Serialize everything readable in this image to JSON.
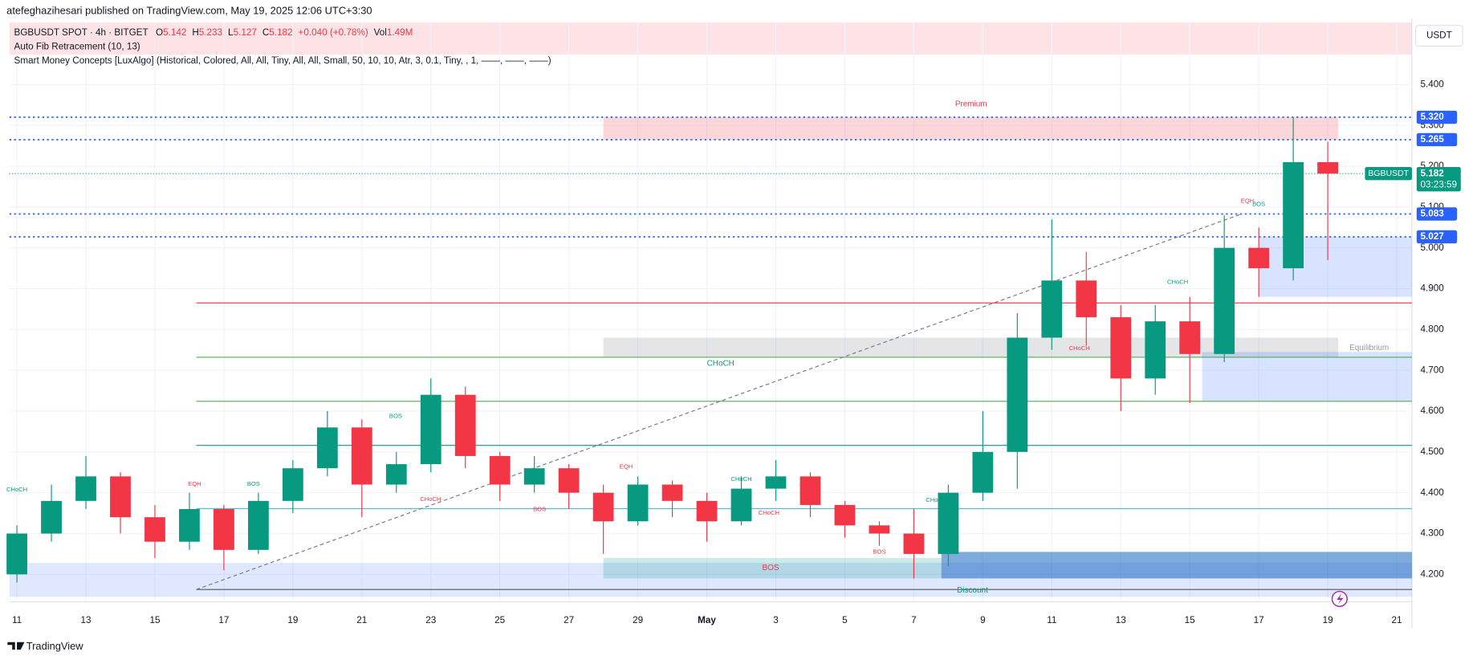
{
  "header": {
    "publisher": "atefeghazihesari published on TradingView.com, May 19, 2025 12:06 UTC+3:30"
  },
  "legend": {
    "symbol": "BGBUSDT SPOT · 4h · BITGET",
    "o_label": "O",
    "open": 5.142,
    "h_label": "H",
    "high": 5.233,
    "l_label": "L",
    "low": 5.127,
    "c_label": "C",
    "close": 5.182,
    "change": "+0.040 (+0.78%)",
    "vol_label": "Vol",
    "volume": "1.49M",
    "indicator_1": "Auto Fib Retracement (10, 13)",
    "indicator_2": "Smart Money Concepts [LuxAlgo] (Historical, Colored, All, All, Tiny, All, All, Small, 50, 10, 10, Atr, 3, 0.1, Tiny, , 1, ——, ——, ——)"
  },
  "currency": "USDT",
  "footer": "TradingView",
  "chart_data": {
    "type": "candlestick",
    "up_color": "#089981",
    "down_color": "#f23645",
    "x": [
      0,
      1,
      2,
      3,
      4,
      5,
      6,
      7,
      8,
      9,
      10,
      11,
      12,
      13,
      14,
      15,
      16,
      17,
      18,
      19,
      20,
      21,
      22,
      23,
      24,
      25,
      26,
      27,
      28,
      29,
      30,
      31,
      32,
      33,
      34,
      35,
      36,
      37,
      38
    ],
    "open": [
      4.2,
      4.3,
      4.38,
      4.44,
      4.34,
      4.28,
      4.36,
      4.26,
      4.38,
      4.46,
      4.56,
      4.42,
      4.47,
      4.64,
      4.49,
      4.42,
      4.46,
      4.4,
      4.33,
      4.42,
      4.38,
      4.33,
      4.41,
      4.44,
      4.37,
      4.32,
      4.3,
      4.25,
      4.4,
      4.5,
      4.78,
      4.92,
      4.83,
      4.68,
      4.82,
      4.74,
      5.0,
      4.95,
      5.21
    ],
    "high": [
      4.32,
      4.42,
      4.49,
      4.45,
      4.37,
      4.4,
      4.37,
      4.4,
      4.48,
      4.6,
      4.58,
      4.5,
      4.68,
      4.66,
      4.5,
      4.49,
      4.47,
      4.42,
      4.44,
      4.43,
      4.4,
      4.44,
      4.48,
      4.45,
      4.38,
      4.33,
      4.36,
      4.42,
      4.6,
      4.84,
      5.07,
      4.99,
      4.86,
      4.86,
      4.88,
      5.08,
      5.05,
      5.32,
      5.26
    ],
    "low": [
      4.18,
      4.28,
      4.36,
      4.3,
      4.24,
      4.26,
      4.21,
      4.25,
      4.35,
      4.44,
      4.34,
      4.4,
      4.45,
      4.46,
      4.38,
      4.4,
      4.36,
      4.25,
      4.32,
      4.34,
      4.28,
      4.32,
      4.38,
      4.34,
      4.29,
      4.27,
      4.19,
      4.22,
      4.38,
      4.41,
      4.75,
      4.76,
      4.6,
      4.64,
      4.62,
      4.72,
      4.88,
      4.92,
      4.97
    ],
    "close": [
      4.3,
      4.38,
      4.44,
      4.34,
      4.28,
      4.36,
      4.26,
      4.38,
      4.46,
      4.56,
      4.42,
      4.47,
      4.64,
      4.49,
      4.42,
      4.46,
      4.4,
      4.33,
      4.42,
      4.38,
      4.33,
      4.41,
      4.44,
      4.37,
      4.32,
      4.3,
      4.25,
      4.4,
      4.5,
      4.78,
      4.92,
      4.83,
      4.68,
      4.82,
      4.74,
      5.0,
      4.95,
      5.21,
      5.182
    ],
    "xlim": [
      -0.218,
      40.44
    ],
    "ylim": [
      4.133,
      5.552
    ],
    "xticks": [
      {
        "value": 0,
        "label": "11"
      },
      {
        "value": 2,
        "label": "13"
      },
      {
        "value": 4,
        "label": "15"
      },
      {
        "value": 6,
        "label": "17"
      },
      {
        "value": 8,
        "label": "19"
      },
      {
        "value": 10,
        "label": "21"
      },
      {
        "value": 12,
        "label": "23"
      },
      {
        "value": 14,
        "label": "25"
      },
      {
        "value": 16,
        "label": "27"
      },
      {
        "value": 18,
        "label": "29"
      },
      {
        "value": 20,
        "label": "May"
      },
      {
        "value": 22,
        "label": "3"
      },
      {
        "value": 24,
        "label": "5"
      },
      {
        "value": 26,
        "label": "7"
      },
      {
        "value": 28,
        "label": "9"
      },
      {
        "value": 30,
        "label": "11"
      },
      {
        "value": 32,
        "label": "13"
      },
      {
        "value": 34,
        "label": "15"
      },
      {
        "value": 36,
        "label": "17"
      },
      {
        "value": 38,
        "label": "19"
      },
      {
        "value": 40,
        "label": "21"
      }
    ],
    "yticks": [
      {
        "value": 5.4,
        "label": "5.400"
      },
      {
        "value": 5.3,
        "label": "5.300"
      },
      {
        "value": 5.2,
        "label": "5.200"
      },
      {
        "value": 5.1,
        "label": "5.100"
      },
      {
        "value": 5.0,
        "label": "5.000"
      },
      {
        "value": 4.9,
        "label": "4.900"
      },
      {
        "value": 4.8,
        "label": "4.800"
      },
      {
        "value": 4.7,
        "label": "4.700"
      },
      {
        "value": 4.6,
        "label": "4.600"
      },
      {
        "value": 4.5,
        "label": "4.500"
      },
      {
        "value": 4.4,
        "label": "4.400"
      },
      {
        "value": 4.3,
        "label": "4.300"
      },
      {
        "value": 4.2,
        "label": "4.200"
      }
    ],
    "grid": true,
    "price_levels": [
      {
        "value": 5.32,
        "label": "5.320"
      },
      {
        "value": 5.265,
        "label": "5.265"
      },
      {
        "value": 5.083,
        "label": "5.083"
      },
      {
        "value": 5.027,
        "label": "5.027"
      }
    ],
    "level_color": "#2962ff",
    "current_price": {
      "name": "BGBUSDT",
      "value": 5.182,
      "label": "5.182",
      "countdown": "03:23:59",
      "color": "#089981"
    },
    "lines": [
      {
        "start": 5.2,
        "value": 4.865,
        "color": "#f23645"
      },
      {
        "start": 5.2,
        "value": 4.732,
        "color": "#4caf50"
      },
      {
        "start": 5.2,
        "value": 4.624,
        "color": "#4caf50"
      },
      {
        "start": 5.2,
        "value": 4.516,
        "color": "#089981"
      },
      {
        "start": 5.2,
        "value": 4.361,
        "color": "#5fb7d4"
      },
      {
        "start": 5.2,
        "value": 4.163,
        "color": "#555555"
      }
    ],
    "fib_line": {
      "x": [
        5.2,
        35.5
      ],
      "values": [
        4.163,
        5.083
      ]
    },
    "zones": [
      {
        "x": [
          17.0,
          38.3
        ],
        "values": [
          5.265,
          5.32
        ],
        "color": "rgba(242,54,69,0.2)"
      },
      {
        "x": [
          17.0,
          38.3
        ],
        "values": [
          4.732,
          4.78
        ],
        "color": "rgba(120,123,134,0.2)"
      },
      {
        "x": [
          -0.218,
          40.44
        ],
        "values": [
          4.145,
          4.228
        ],
        "color": "rgba(41,98,255,0.15)"
      },
      {
        "x": [
          17.0,
          26.8
        ],
        "values": [
          4.19,
          4.24
        ],
        "color": "rgba(0,150,136,0.2)"
      },
      {
        "x": [
          26.8,
          40.44
        ],
        "values": [
          4.19,
          4.255
        ],
        "color": "rgba(21,101,192,0.55)"
      },
      {
        "x": [
          34.36,
          40.44
        ],
        "values": [
          4.624,
          4.745
        ],
        "color": "rgba(41,98,255,0.18)"
      },
      {
        "x": [
          36.0,
          40.44
        ],
        "values": [
          4.88,
          5.027
        ],
        "color": "rgba(41,98,255,0.18)"
      }
    ],
    "zone_labels": [
      {
        "text": "Premium",
        "x": 27.66,
        "value": 5.352,
        "color": "#f23645"
      },
      {
        "text": "Equilibrium",
        "x": 39.2,
        "value": 4.755,
        "color": "#9598a1"
      },
      {
        "text": "Discount",
        "x": 27.7,
        "value": 4.161,
        "color": "#089981"
      },
      {
        "text": "CHoCH",
        "x": 20.4,
        "value": 4.716,
        "color": "#089981"
      },
      {
        "text": "BOS",
        "x": 21.85,
        "value": 4.216,
        "color": "#f23645"
      }
    ],
    "annotations": [
      {
        "text": "CHoCH",
        "x": 0,
        "value": 4.407,
        "color": "#089981"
      },
      {
        "text": "EQH",
        "x": 5.15,
        "value": 4.421,
        "color": "#f23645"
      },
      {
        "text": "BOS",
        "x": 6.86,
        "value": 4.421,
        "color": "#089981"
      },
      {
        "text": "BOS",
        "x": 10.98,
        "value": 4.587,
        "color": "#089981"
      },
      {
        "text": "CHoCH",
        "x": 11.99,
        "value": 4.384,
        "color": "#f23645"
      },
      {
        "text": "BOS",
        "x": 15.15,
        "value": 4.359,
        "color": "#f23645"
      },
      {
        "text": "EQH",
        "x": 17.66,
        "value": 4.463,
        "color": "#f23645"
      },
      {
        "text": "CHoCH",
        "x": 21.0,
        "value": 4.433,
        "color": "#089981"
      },
      {
        "text": "CHoCH",
        "x": 21.8,
        "value": 4.35,
        "color": "#f23645"
      },
      {
        "text": "BOS",
        "x": 25.0,
        "value": 4.255,
        "color": "#f23645"
      },
      {
        "text": "CHoCH",
        "x": 26.65,
        "value": 4.382,
        "color": "#089981"
      },
      {
        "text": "CHoCH",
        "x": 30.8,
        "value": 4.753,
        "color": "#f23645"
      },
      {
        "text": "CHoCH",
        "x": 33.65,
        "value": 4.916,
        "color": "#089981"
      },
      {
        "text": "EQH",
        "x": 35.67,
        "value": 5.114,
        "color": "#f23645"
      },
      {
        "text": "BOS",
        "x": 36.0,
        "value": 5.107,
        "color": "#089981"
      }
    ]
  }
}
